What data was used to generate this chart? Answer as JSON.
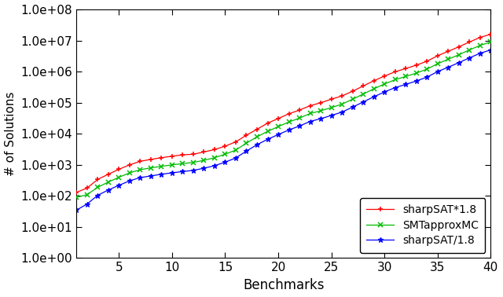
{
  "title": "",
  "xlabel": "Benchmarks",
  "ylabel": "# of Solutions",
  "xlim": [
    1,
    40
  ],
  "ylim_log": [
    1.0,
    100000000.0
  ],
  "x": [
    1,
    2,
    3,
    4,
    5,
    6,
    7,
    8,
    9,
    10,
    11,
    12,
    13,
    14,
    15,
    16,
    17,
    18,
    19,
    20,
    21,
    22,
    23,
    24,
    25,
    26,
    27,
    28,
    29,
    30,
    31,
    32,
    33,
    34,
    35,
    36,
    37,
    38,
    39,
    40
  ],
  "smt": [
    90,
    110,
    190,
    280,
    400,
    550,
    700,
    800,
    900,
    1000,
    1100,
    1200,
    1400,
    1700,
    2200,
    3000,
    5000,
    8000,
    12000,
    17000,
    24000,
    32000,
    45000,
    55000,
    70000,
    90000,
    130000,
    190000,
    280000,
    400000,
    550000,
    700000,
    900000,
    1200000,
    1800000,
    2500000,
    3500000,
    5000000,
    7000000,
    9000000
  ],
  "sharp_up": [
    130,
    180,
    340,
    500,
    720,
    1000,
    1300,
    1500,
    1700,
    1900,
    2100,
    2200,
    2600,
    3100,
    4000,
    5500,
    9000,
    14000,
    22000,
    31000,
    44000,
    58000,
    80000,
    100000,
    130000,
    165000,
    235000,
    345000,
    510000,
    720000,
    990000,
    1260000,
    1620000,
    2160000,
    3240000,
    4500000,
    6300000,
    9000000,
    12600000,
    16000000
  ],
  "sharp_down": [
    35,
    55,
    105,
    155,
    220,
    305,
    390,
    440,
    500,
    555,
    610,
    665,
    780,
    940,
    1220,
    1670,
    2780,
    4440,
    6670,
    9440,
    13300,
    17800,
    25000,
    30600,
    38900,
    50000,
    72200,
    105600,
    155600,
    222000,
    305600,
    388900,
    500000,
    666700,
    1000000,
    1388900,
    1944000,
    2777800,
    3888900,
    5000000
  ],
  "color_smt": "#00bb00",
  "color_sharp_up": "#ff0000",
  "color_sharp_down": "#0000ff",
  "legend_labels": [
    "SMTapproxMC",
    "sharpSAT*1.8",
    "sharpSAT/1.8"
  ],
  "xticks": [
    5,
    10,
    15,
    20,
    25,
    30,
    35,
    40
  ],
  "ytick_vals": [
    1.0,
    10.0,
    100.0,
    1000.0,
    10000.0,
    100000.0,
    1000000.0,
    10000000.0,
    100000000.0
  ],
  "ytick_labels": [
    "1.0e+00",
    "1.0e+01",
    "1.0e+02",
    "1.0e+03",
    "1.0e+04",
    "1.0e+05",
    "1.0e+06",
    "1.0e+07",
    "1.0e+08"
  ],
  "background_color": "#ffffff"
}
